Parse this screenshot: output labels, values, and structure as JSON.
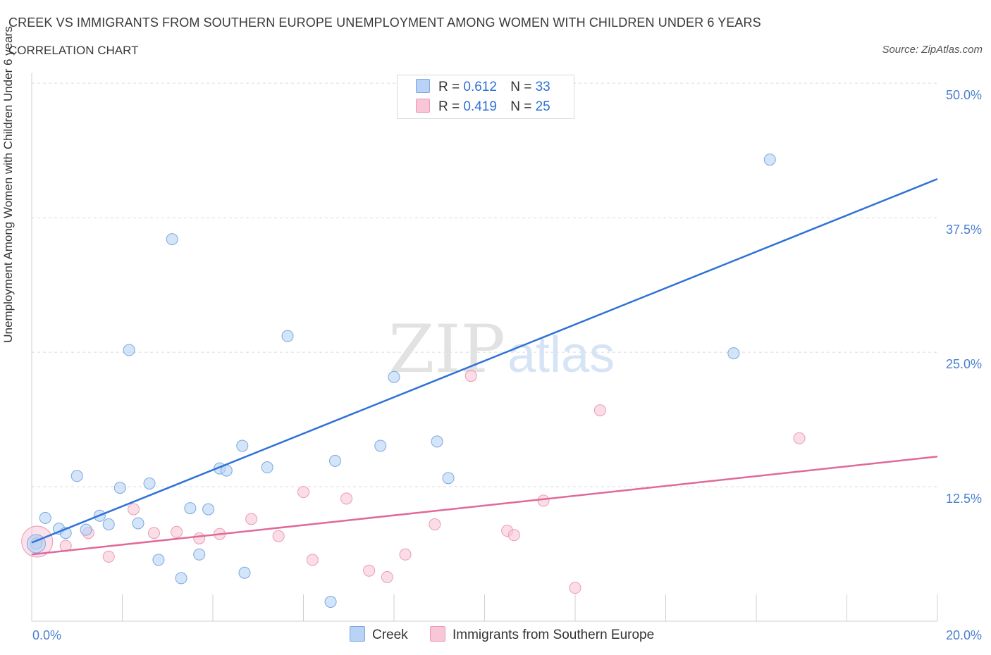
{
  "header": {
    "title": "CREEK VS IMMIGRANTS FROM SOUTHERN EUROPE UNEMPLOYMENT AMONG WOMEN WITH CHILDREN UNDER 6 YEARS",
    "subtitle": "CORRELATION CHART",
    "source": "Source: ZipAtlas.com"
  },
  "watermark": {
    "zip": "ZIP",
    "atlas": "atlas"
  },
  "legend": {
    "r_label": "R =",
    "n_label": "N =",
    "rows": [
      {
        "r": "0.612",
        "n": "33"
      },
      {
        "r": "0.419",
        "n": "25"
      }
    ]
  },
  "colors": {
    "creek_fill": "#b8d3f5",
    "creek_stroke": "#7aa7e0",
    "creek_line": "#2f72d6",
    "immigrants_fill": "#f8c6d6",
    "immigrants_stroke": "#ec9ab5",
    "immigrants_line": "#e0699a",
    "tick_label": "#4a7fd0",
    "grid": "#dcdcdc"
  },
  "chart_data": {
    "type": "scatter",
    "title": "CREEK VS IMMIGRANTS FROM SOUTHERN EUROPE UNEMPLOYMENT AMONG WOMEN WITH CHILDREN UNDER 6 YEARS",
    "xlabel": "",
    "ylabel": "Unemployment Among Women with Children Under 6 years",
    "xlim": [
      0,
      20
    ],
    "ylim": [
      0,
      50
    ],
    "x_tick_labels": [
      "0.0%",
      "20.0%"
    ],
    "y_tick_labels": [
      "50.0%",
      "37.5%",
      "25.0%",
      "12.5%"
    ],
    "y_ticks": [
      50,
      37.5,
      25,
      12.5
    ],
    "grid": "horizontal dashed",
    "legend_position": "bottom",
    "series": [
      {
        "name": "Creek",
        "color": "#b8d3f5",
        "trend": {
          "x": [
            0,
            20
          ],
          "y": [
            7.3,
            41.1
          ]
        },
        "points": [
          [
            0.1,
            7.2
          ],
          [
            0.3,
            9.6
          ],
          [
            0.6,
            8.6
          ],
          [
            0.75,
            8.2
          ],
          [
            1.0,
            13.5
          ],
          [
            1.2,
            8.5
          ],
          [
            1.5,
            9.8
          ],
          [
            1.7,
            9.0
          ],
          [
            1.95,
            12.4
          ],
          [
            2.15,
            25.2
          ],
          [
            2.35,
            9.1
          ],
          [
            2.6,
            12.8
          ],
          [
            2.8,
            5.7
          ],
          [
            3.1,
            35.5
          ],
          [
            3.3,
            4.0
          ],
          [
            3.5,
            10.5
          ],
          [
            3.7,
            6.2
          ],
          [
            3.9,
            10.4
          ],
          [
            4.15,
            14.2
          ],
          [
            4.3,
            14.0
          ],
          [
            4.65,
            16.3
          ],
          [
            4.7,
            4.5
          ],
          [
            5.2,
            14.3
          ],
          [
            5.65,
            26.5
          ],
          [
            6.6,
            1.8
          ],
          [
            6.7,
            14.9
          ],
          [
            7.7,
            16.3
          ],
          [
            8.0,
            22.7
          ],
          [
            8.95,
            16.7
          ],
          [
            9.2,
            13.3
          ],
          [
            10.45,
            50.0
          ],
          [
            15.5,
            24.9
          ],
          [
            16.3,
            42.9
          ]
        ]
      },
      {
        "name": "Immigrants from Southern Europe",
        "color": "#f8c6d6",
        "trend": {
          "x": [
            0,
            20
          ],
          "y": [
            6.2,
            15.3
          ]
        },
        "points": [
          [
            0.12,
            7.4
          ],
          [
            0.75,
            7.0
          ],
          [
            1.25,
            8.2
          ],
          [
            1.7,
            6.0
          ],
          [
            2.25,
            10.4
          ],
          [
            2.7,
            8.2
          ],
          [
            3.2,
            8.3
          ],
          [
            3.7,
            7.7
          ],
          [
            4.15,
            8.1
          ],
          [
            4.85,
            9.5
          ],
          [
            5.45,
            7.9
          ],
          [
            6.0,
            12.0
          ],
          [
            6.2,
            5.7
          ],
          [
            6.95,
            11.4
          ],
          [
            7.45,
            4.7
          ],
          [
            7.85,
            4.1
          ],
          [
            8.25,
            6.2
          ],
          [
            8.9,
            9.0
          ],
          [
            9.7,
            22.8
          ],
          [
            10.5,
            8.4
          ],
          [
            10.65,
            8.0
          ],
          [
            11.3,
            11.2
          ],
          [
            12.0,
            3.1
          ],
          [
            12.55,
            19.6
          ],
          [
            16.95,
            17.0
          ]
        ]
      }
    ]
  },
  "bottom_legend": {
    "items": [
      {
        "label": "Creek"
      },
      {
        "label": "Immigrants from Southern Europe"
      }
    ]
  }
}
